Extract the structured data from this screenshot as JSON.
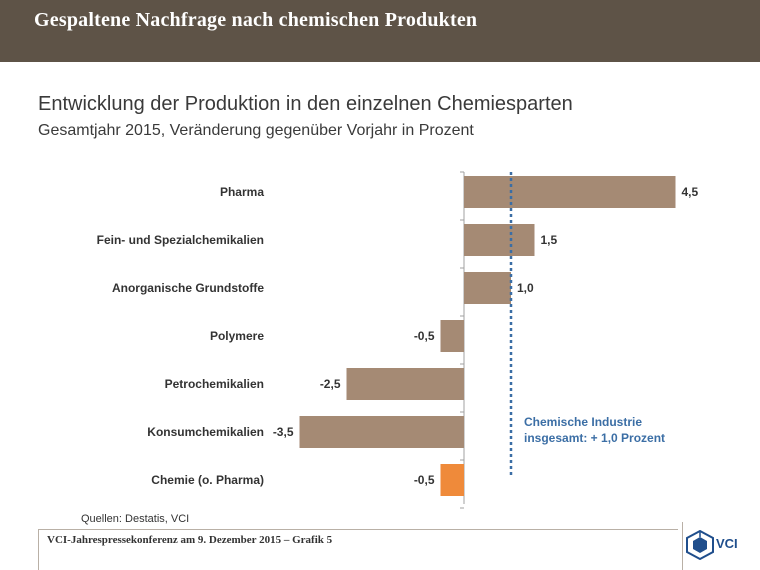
{
  "banner": {
    "title": "Gespaltene Nachfrage nach chemischen Produkten"
  },
  "chart_data": {
    "type": "bar",
    "orientation": "horizontal",
    "title": "Entwicklung der Produktion in den einzelnen Chemiesparten",
    "subtitle": "Gesamtjahr 2015, Veränderung gegenüber Vorjahr in Prozent",
    "categories": [
      "Pharma",
      "Fein- und Spezialchemikalien",
      "Anorganische Grundstoffe",
      "Polymere",
      "Petrochemikalien",
      "Konsumchemikalien",
      "Chemie (o. Pharma)"
    ],
    "values": [
      4.5,
      1.5,
      1.0,
      -0.5,
      -2.5,
      -3.5,
      -0.5
    ],
    "value_labels": [
      "4,5",
      "1,5",
      "1,0",
      "-0,5",
      "-2,5",
      "-3,5",
      "-0,5"
    ],
    "colors": [
      "#a58a74",
      "#a58a74",
      "#a58a74",
      "#a58a74",
      "#a58a74",
      "#a58a74",
      "#ef8a3a"
    ],
    "reference_line": {
      "value": 1.0,
      "color": "#3b6ea5",
      "label_lines": [
        "Chemische Industrie",
        "insgesamt: + 1,0 Prozent"
      ]
    },
    "xlim": [
      -3.6,
      4.8
    ],
    "grid": false,
    "legend": "none"
  },
  "source": "Quellen: Destatis, VCI",
  "footer": {
    "text": "VCI-Jahrespressekonferenz am 9. Dezember 2015 – Grafik 5"
  },
  "logo": {
    "text": "VCI",
    "color": "#1f4e8c"
  }
}
